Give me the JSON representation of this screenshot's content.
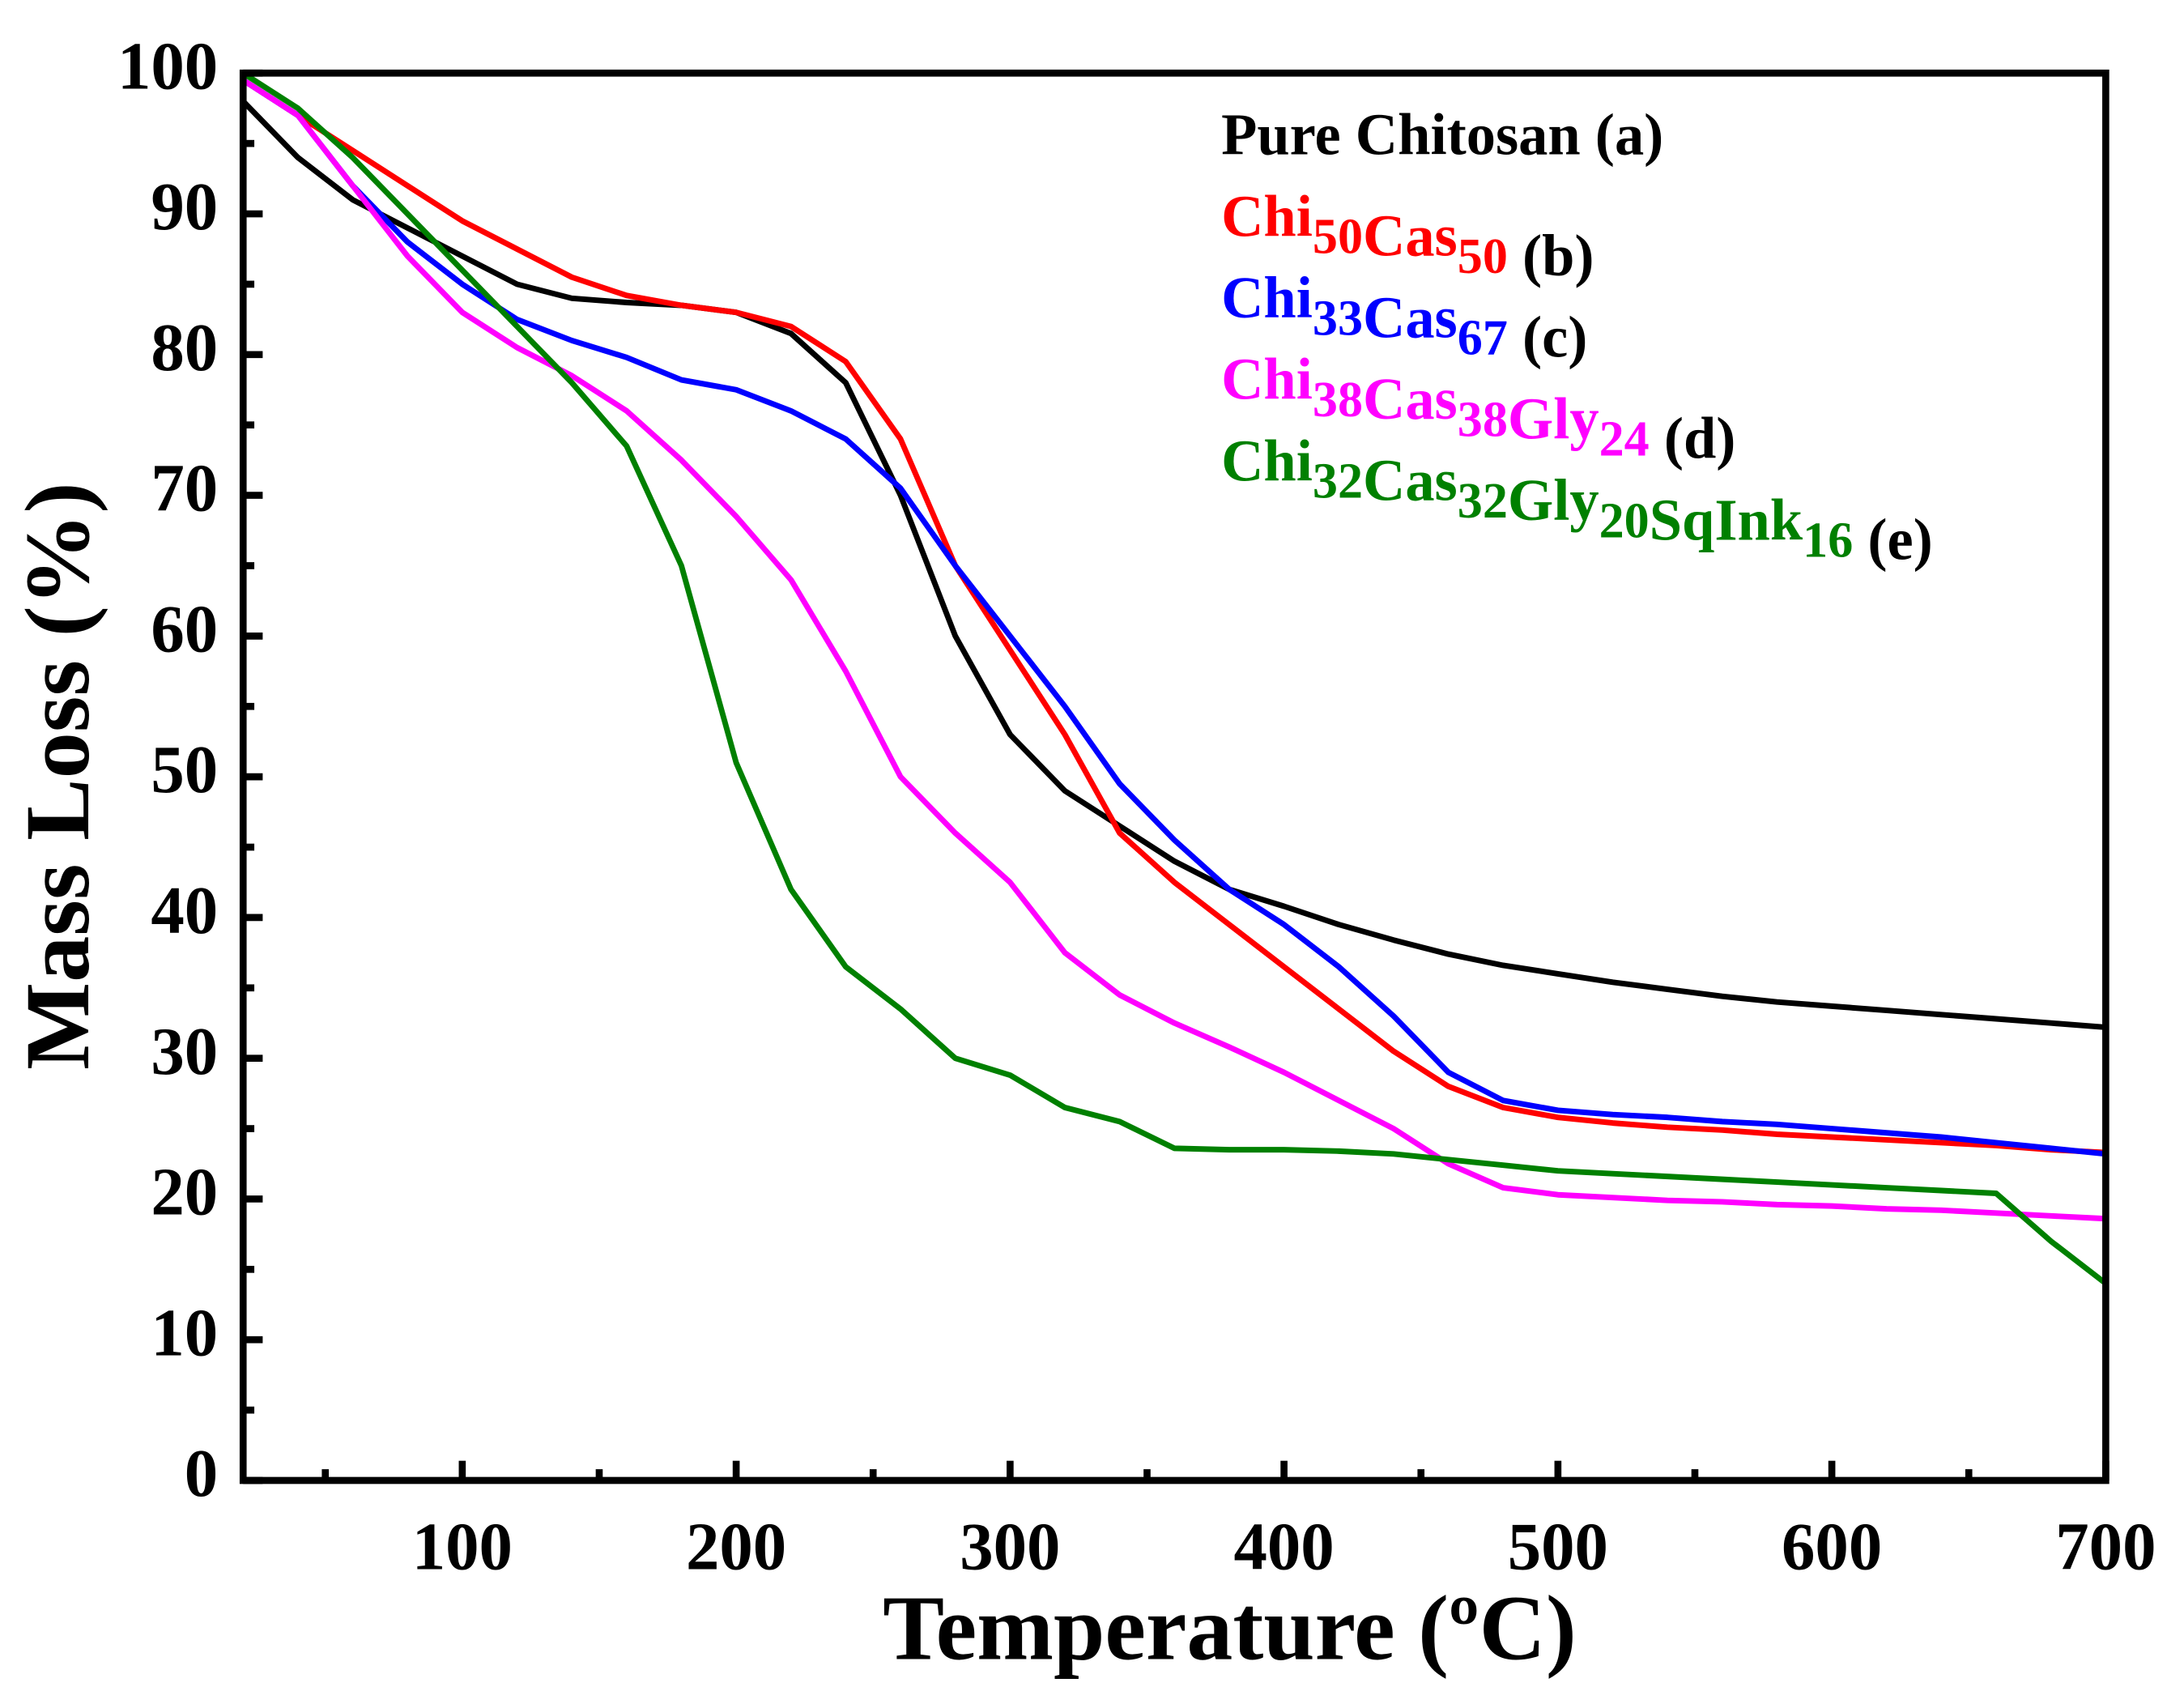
{
  "chart_data": {
    "type": "line",
    "xlabel": "Temperature (ºC)",
    "ylabel": "Mass Loss (%)",
    "x": [
      20,
      40,
      60,
      80,
      100,
      120,
      140,
      160,
      180,
      200,
      220,
      240,
      260,
      280,
      300,
      320,
      340,
      360,
      380,
      400,
      420,
      440,
      460,
      480,
      500,
      520,
      540,
      560,
      580,
      600,
      620,
      640,
      660,
      680,
      700
    ],
    "series": [
      {
        "name": "Pure Chitosan (a)",
        "color": "#000000",
        "values": [
          98,
          94,
          91,
          89,
          87,
          85,
          84,
          83.7,
          83.5,
          83,
          81.5,
          78,
          70,
          60,
          53,
          49,
          46.5,
          44,
          42,
          40.8,
          39.5,
          38.4,
          37.4,
          36.6,
          36,
          35.4,
          34.9,
          34.4,
          34,
          33.7,
          33.4,
          33.1,
          32.8,
          32.5,
          32.2
        ]
      },
      {
        "name": "Chi50Cas50 (b)",
        "color": "#ff0000",
        "values": [
          99.5,
          97,
          94.5,
          92,
          89.5,
          87.5,
          85.5,
          84.2,
          83.5,
          83,
          82,
          79.5,
          74,
          65,
          59,
          53,
          46,
          42.5,
          39.5,
          36.5,
          33.5,
          30.5,
          28,
          26.5,
          25.8,
          25.4,
          25.1,
          24.9,
          24.6,
          24.4,
          24.2,
          24,
          23.8,
          23.5,
          23.3
        ]
      },
      {
        "name": "Chi33Cas67 (c)",
        "color": "#0000ff",
        "values": [
          99.5,
          97,
          92,
          88,
          85,
          82.5,
          81,
          79.8,
          78.2,
          77.5,
          76,
          74,
          70.5,
          65,
          60,
          55,
          49.5,
          45.5,
          42,
          39.5,
          36.5,
          33,
          29,
          27,
          26.3,
          26,
          25.8,
          25.5,
          25.3,
          25,
          24.7,
          24.4,
          24,
          23.6,
          23.2
        ]
      },
      {
        "name": "Chi38Cas38Gly24 (d)",
        "color": "#ff00ff",
        "values": [
          99.5,
          97,
          92,
          87,
          83,
          80.5,
          78.5,
          76,
          72.5,
          68.5,
          64,
          57.5,
          50,
          46,
          42.5,
          37.5,
          34.5,
          32.5,
          30.8,
          29,
          27,
          25,
          22.5,
          20.8,
          20.3,
          20.1,
          19.9,
          19.8,
          19.6,
          19.5,
          19.3,
          19.2,
          19,
          18.8,
          18.6
        ]
      },
      {
        "name": "Chi32Cas32Gly20SqInk16 (e)",
        "color": "#008000",
        "values": [
          100,
          97.5,
          94,
          90,
          86,
          82,
          78,
          73.5,
          65,
          51,
          42,
          36.5,
          33.5,
          30,
          28.8,
          26.5,
          25.5,
          23.6,
          23.5,
          23.5,
          23.4,
          23.2,
          22.8,
          22.4,
          22,
          21.8,
          21.6,
          21.4,
          21.2,
          21,
          20.8,
          20.6,
          20.4,
          17,
          14
        ]
      }
    ],
    "xlim": [
      20,
      700
    ],
    "xticks": [
      100,
      200,
      300,
      400,
      500,
      600,
      700
    ],
    "ylim": [
      0,
      100
    ],
    "yticks": [
      0,
      10,
      20,
      30,
      40,
      50,
      60,
      70,
      80,
      90,
      100
    ],
    "legend": "upper right"
  }
}
